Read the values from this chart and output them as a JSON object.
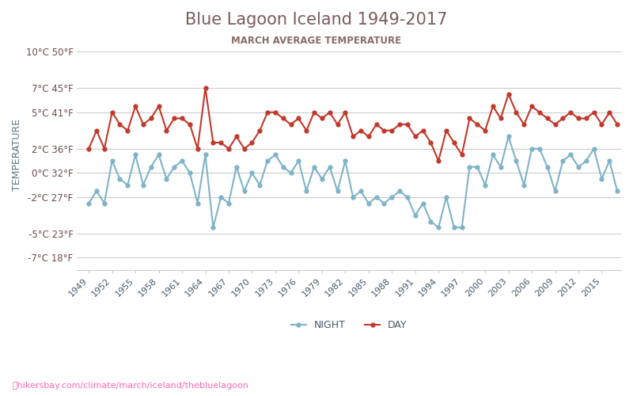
{
  "title": "Blue Lagoon Iceland 1949-2017",
  "subtitle": "MARCH AVERAGE TEMPERATURE",
  "ylabel": "TEMPERATURE",
  "watermark": "hikersbay.com/climate/march/iceland/thebluelagoon",
  "legend_night": "NIGHT",
  "legend_day": "DAY",
  "years": [
    1949,
    1950,
    1951,
    1952,
    1953,
    1954,
    1955,
    1956,
    1957,
    1958,
    1959,
    1960,
    1961,
    1962,
    1963,
    1964,
    1965,
    1966,
    1967,
    1968,
    1969,
    1970,
    1971,
    1972,
    1973,
    1974,
    1975,
    1976,
    1977,
    1978,
    1979,
    1980,
    1981,
    1982,
    1983,
    1984,
    1985,
    1986,
    1987,
    1988,
    1989,
    1990,
    1991,
    1992,
    1993,
    1994,
    1995,
    1996,
    1997,
    1998,
    1999,
    2000,
    2001,
    2002,
    2003,
    2004,
    2005,
    2006,
    2007,
    2008,
    2009,
    2010,
    2011,
    2012,
    2013,
    2014,
    2015,
    2016,
    2017
  ],
  "day": [
    2.0,
    3.5,
    2.0,
    5.0,
    4.0,
    3.5,
    5.5,
    4.0,
    4.5,
    5.5,
    3.5,
    4.5,
    4.5,
    4.0,
    2.0,
    7.0,
    2.5,
    2.5,
    2.0,
    3.0,
    2.0,
    2.5,
    3.5,
    5.0,
    5.0,
    4.5,
    4.0,
    4.5,
    3.5,
    5.0,
    4.5,
    5.0,
    4.0,
    5.0,
    3.0,
    3.5,
    3.0,
    4.0,
    3.5,
    3.5,
    4.0,
    4.0,
    3.0,
    3.5,
    2.5,
    1.0,
    3.5,
    2.5,
    1.5,
    4.5,
    4.0,
    3.5,
    5.5,
    4.5,
    6.5,
    5.0,
    4.0,
    5.5,
    5.0,
    4.5,
    4.0,
    4.5,
    5.0,
    4.5,
    4.5,
    5.0,
    4.0,
    5.0,
    4.0
  ],
  "night": [
    -2.5,
    -1.5,
    -2.5,
    1.0,
    -0.5,
    -1.0,
    1.5,
    -1.0,
    0.5,
    1.5,
    -0.5,
    0.5,
    1.0,
    0.0,
    -2.5,
    1.5,
    -4.5,
    -2.0,
    -2.5,
    0.5,
    -1.5,
    0.0,
    -1.0,
    1.0,
    1.5,
    0.5,
    0.0,
    1.0,
    -1.5,
    0.5,
    -0.5,
    0.5,
    -1.5,
    1.0,
    -2.0,
    -1.5,
    -2.5,
    -2.0,
    -2.5,
    -2.0,
    -1.5,
    -2.0,
    -3.5,
    -2.5,
    -4.0,
    -4.5,
    -2.0,
    -4.5,
    -4.5,
    0.5,
    0.5,
    -1.0,
    1.5,
    0.5,
    3.0,
    1.0,
    -1.0,
    2.0,
    2.0,
    0.5,
    -1.5,
    1.0,
    1.5,
    0.5,
    1.0,
    2.0,
    -0.5,
    1.0,
    -1.5
  ],
  "yticks_c": [
    -7,
    -5,
    -2,
    0,
    2,
    5,
    7,
    10
  ],
  "yticks_f": [
    18,
    23,
    27,
    32,
    36,
    41,
    45,
    50
  ],
  "xtick_years": [
    1949,
    1952,
    1955,
    1958,
    1961,
    1964,
    1967,
    1970,
    1973,
    1976,
    1979,
    1982,
    1985,
    1988,
    1991,
    1994,
    1997,
    2000,
    2003,
    2006,
    2009,
    2012,
    2015
  ],
  "day_color": "#c0392b",
  "night_color": "#7fb3c8",
  "grid_color": "#cccccc",
  "title_color": "#7a5c5c",
  "subtitle_color": "#8b6a6a",
  "tick_color": "#6b4c4c",
  "ylabel_color": "#5a7a8a",
  "bg_color": "#ffffff",
  "watermark_color": "#ff69b4",
  "xtick_color": "#4a5a6a",
  "legend_label_color": "#4a5a6a"
}
